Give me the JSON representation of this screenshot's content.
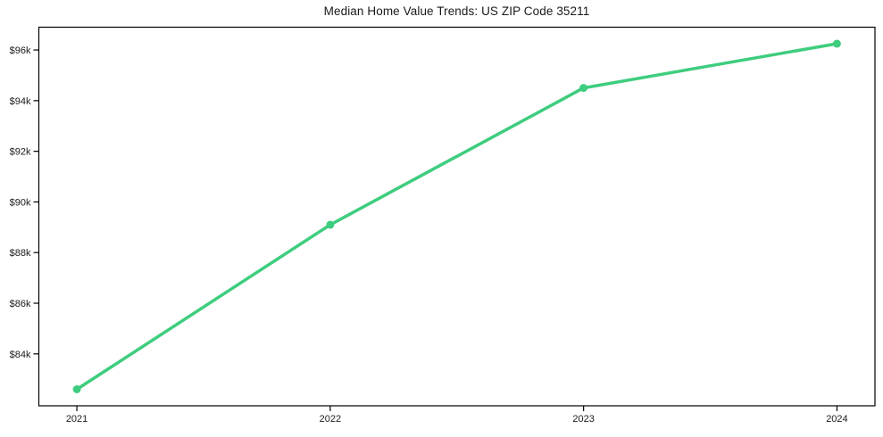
{
  "figure": {
    "title": "Median Home Value Trends: US ZIP Code 35211"
  },
  "chart_data": {
    "type": "line",
    "title": "Median Home Value Trends: US ZIP Code 35211",
    "xlabel": "",
    "ylabel": "",
    "categories": [
      "2021",
      "2022",
      "2023",
      "2024"
    ],
    "x": [
      2021,
      2022,
      2023,
      2024
    ],
    "series": [
      {
        "name": "median-home-value",
        "values": [
          82600,
          89100,
          94500,
          96250
        ],
        "color": "#3ecd7e",
        "marker": "circle",
        "line_width": 3.5,
        "marker_radius": 4.5
      }
    ],
    "x_ticks": [
      2021,
      2022,
      2023,
      2024
    ],
    "x_tick_labels": [
      "2021",
      "2022",
      "2023",
      "2024"
    ],
    "y_ticks": [
      84000,
      86000,
      88000,
      90000,
      92000,
      94000,
      96000
    ],
    "y_tick_labels": [
      "$84k",
      "$86k",
      "$88k",
      "$90k",
      "$92k",
      "$94k",
      "$96k"
    ],
    "xlim": [
      2020.85,
      2024.15
    ],
    "ylim": [
      81950,
      96900
    ],
    "grid": false,
    "legend": "none",
    "axis_color": "#000000",
    "text_color": "#1a1a1a",
    "background": "#ffffff"
  }
}
